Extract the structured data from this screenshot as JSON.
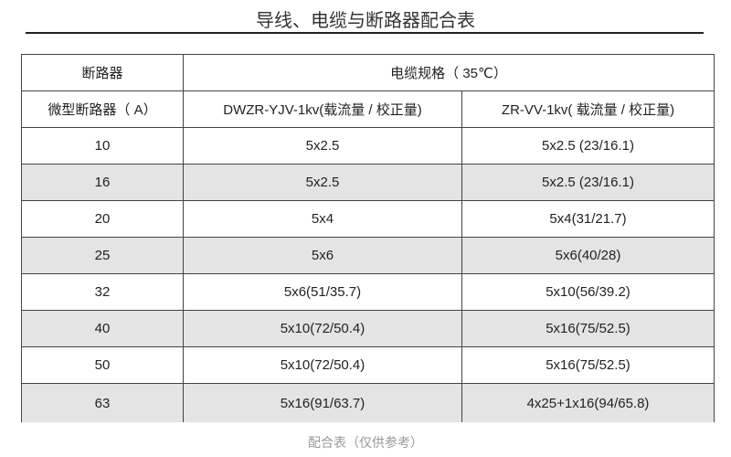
{
  "title": "导线、电缆与断路器配合表",
  "table": {
    "header_breaker": "断路器",
    "header_cable": "电缆规格（ 35℃）",
    "sub_breaker": "微型断路器（ A）",
    "sub_col1": "DWZR-YJV-1kv(载流量 / 校正量)",
    "sub_col2": "ZR-VV-1kv( 载流量 / 校正量)",
    "rows": [
      {
        "breaker": "10",
        "yjv": "5x2.5",
        "vv": "5x2.5 (23/16.1)"
      },
      {
        "breaker": "16",
        "yjv": "5x2.5",
        "vv": "5x2.5 (23/16.1)"
      },
      {
        "breaker": "20",
        "yjv": "5x4",
        "vv": "5x4(31/21.7)"
      },
      {
        "breaker": "25",
        "yjv": "5x6",
        "vv": "5x6(40/28)"
      },
      {
        "breaker": "32",
        "yjv": "5x6(51/35.7)",
        "vv": "5x10(56/39.2)"
      },
      {
        "breaker": "40",
        "yjv": "5x10(72/50.4)",
        "vv": "5x16(75/52.5)"
      },
      {
        "breaker": "50",
        "yjv": "5x10(72/50.4)",
        "vv": "5x16(75/52.5)"
      },
      {
        "breaker": "63",
        "yjv": "5x16(91/63.7)",
        "vv": "4x25+1x16(94/65.8)"
      }
    ]
  },
  "caption": "配合表（仅供参考）",
  "colors": {
    "shade": "#e4e4e4",
    "caption": "#999999"
  }
}
